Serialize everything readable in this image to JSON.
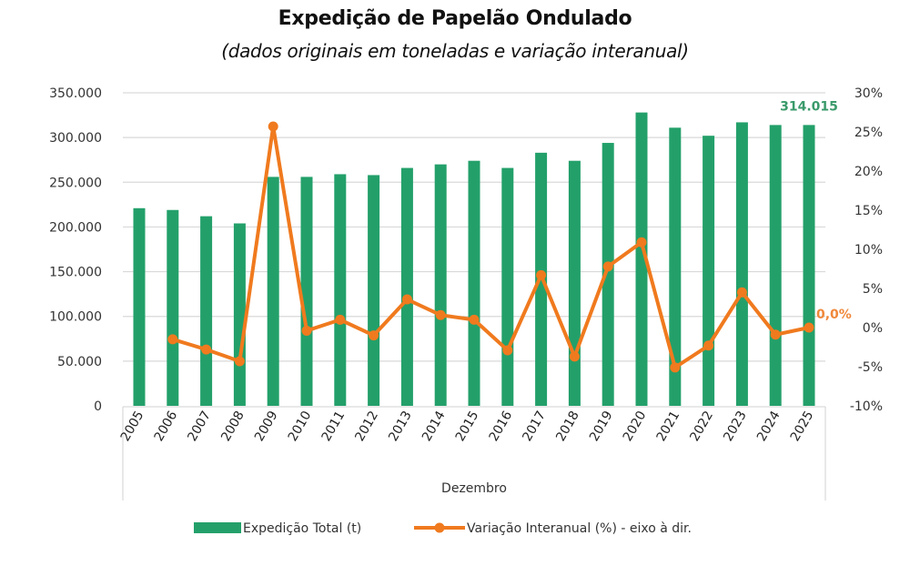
{
  "chart_data": {
    "type": "bar+line",
    "title": "Expedição de Papelão Ondulado",
    "subtitle": "(dados originais em toneladas e variação interanual)",
    "xlabel": "Dezembro",
    "categories": [
      "2005",
      "2006",
      "2007",
      "2008",
      "2009",
      "2010",
      "2011",
      "2012",
      "2013",
      "2014",
      "2015",
      "2016",
      "2017",
      "2018",
      "2019",
      "2020",
      "2021",
      "2022",
      "2023",
      "2024",
      "2025"
    ],
    "series": [
      {
        "name": "Expedição Total (t)",
        "type": "bar",
        "axis": "left",
        "color": "#23A06A",
        "values": [
          221000,
          219000,
          212000,
          204000,
          256000,
          256000,
          259000,
          258000,
          266000,
          270000,
          274000,
          266000,
          283000,
          274000,
          294000,
          328000,
          311000,
          302000,
          317000,
          314000,
          314015
        ]
      },
      {
        "name": "Variação Interanual (%) - eixo à dir.",
        "type": "line",
        "axis": "right",
        "color": "#F07A1E",
        "values": [
          null,
          -1.5,
          -2.8,
          -4.3,
          25.7,
          -0.4,
          1.0,
          -1.0,
          3.6,
          1.6,
          1.0,
          -2.9,
          6.7,
          -3.7,
          7.8,
          10.9,
          -5.1,
          -2.3,
          4.5,
          -0.9,
          0.0
        ]
      }
    ],
    "y_left": {
      "ylim": [
        0,
        350000
      ],
      "ticks": [
        0,
        50000,
        100000,
        150000,
        200000,
        250000,
        300000,
        350000
      ],
      "tick_labels": [
        "0",
        "50.000",
        "100.000",
        "150.000",
        "200.000",
        "250.000",
        "300.000",
        "350.000"
      ]
    },
    "y_right": {
      "ylim": [
        -10,
        30
      ],
      "ticks": [
        -10,
        -5,
        0,
        5,
        10,
        15,
        20,
        25,
        30
      ],
      "tick_labels": [
        "-10%",
        "-5%",
        "0%",
        "5%",
        "10%",
        "15%",
        "20%",
        "25%",
        "30%"
      ]
    },
    "annotations": [
      {
        "series": 0,
        "index": 20,
        "text": "314.015",
        "color": "#3A9A6A"
      },
      {
        "series": 1,
        "index": 20,
        "text": "0,0%",
        "color": "#F0883A"
      }
    ],
    "grid": true,
    "legend": "bottom"
  }
}
